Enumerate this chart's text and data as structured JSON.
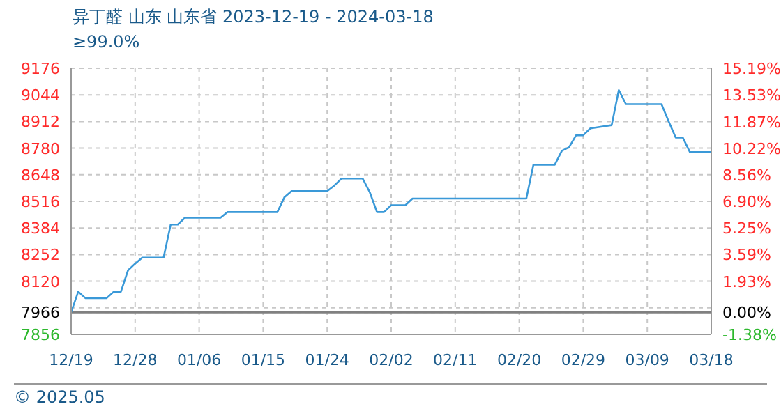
{
  "chart_data": {
    "type": "line",
    "title": "异丁醛 山东 山东省 2023-12-19 - 2024-03-18",
    "subtitle": "≥99.0%",
    "annotations": [
      "© 2025.05"
    ],
    "x": [
      "2023-12-19",
      "2023-12-20",
      "2023-12-21",
      "2023-12-24",
      "2023-12-25",
      "2023-12-26",
      "2023-12-27",
      "2023-12-28",
      "2023-12-29",
      "2024-01-01",
      "2024-01-02",
      "2024-01-03",
      "2024-01-04",
      "2024-01-09",
      "2024-01-10",
      "2024-01-17",
      "2024-01-18",
      "2024-01-19",
      "2024-01-24",
      "2024-01-25",
      "2024-01-26",
      "2024-01-29",
      "2024-01-30",
      "2024-01-31",
      "2024-02-01",
      "2024-02-02",
      "2024-02-04",
      "2024-02-05",
      "2024-02-21",
      "2024-02-22",
      "2024-02-25",
      "2024-02-26",
      "2024-02-27",
      "2024-02-28",
      "2024-02-29",
      "2024-03-01",
      "2024-03-04",
      "2024-03-05",
      "2024-03-06",
      "2024-03-11",
      "2024-03-12",
      "2024-03-13",
      "2024-03-14",
      "2024-03-15",
      "2024-03-18"
    ],
    "series": [
      {
        "color": "#3a99d8",
        "values": [
          7966,
          8068,
          8036,
          8036,
          8068,
          8068,
          8174,
          8207,
          8237,
          8237,
          8401,
          8401,
          8435,
          8435,
          8463,
          8463,
          8537,
          8567,
          8567,
          8594,
          8629,
          8629,
          8560,
          8463,
          8463,
          8497,
          8497,
          8530,
          8530,
          8698,
          8698,
          8767,
          8784,
          8844,
          8844,
          8878,
          8894,
          9068,
          8998,
          8998,
          8913,
          8832,
          8832,
          8760,
          8760
        ]
      }
    ],
    "xlim": [
      "2023-12-19",
      "2024-03-18"
    ],
    "xticks": [
      {
        "value": "2023-12-19",
        "label": "12/19"
      },
      {
        "value": "2023-12-28",
        "label": "12/28"
      },
      {
        "value": "2024-01-06",
        "label": "01/06"
      },
      {
        "value": "2024-01-15",
        "label": "01/15"
      },
      {
        "value": "2024-01-24",
        "label": "01/24"
      },
      {
        "value": "2024-02-02",
        "label": "02/02"
      },
      {
        "value": "2024-02-11",
        "label": "02/11"
      },
      {
        "value": "2024-02-20",
        "label": "02/20"
      },
      {
        "value": "2024-02-29",
        "label": "02/29"
      },
      {
        "value": "2024-03-09",
        "label": "03/09"
      },
      {
        "value": "2024-03-18",
        "label": "03/18"
      }
    ],
    "ylim": [
      7856,
      9176
    ],
    "yticks": [
      7856,
      7966,
      {
        "value": 7988,
        "label": null
      },
      8120,
      8252,
      8384,
      8516,
      8648,
      8780,
      8912,
      9044,
      9176
    ],
    "y2lim": [
      -1.38,
      15.19
    ],
    "y2ticks": [
      {
        "value": -1.38,
        "label": "-1.38%"
      },
      {
        "value": 0,
        "label": "0.00%"
      },
      {
        "value": 1.93,
        "label": "1.93%"
      },
      {
        "value": 3.59,
        "label": "3.59%"
      },
      {
        "value": 5.25,
        "label": "5.25%"
      },
      {
        "value": 6.9,
        "label": "6.90%"
      },
      {
        "value": 8.56,
        "label": "8.56%"
      },
      {
        "value": 10.22,
        "label": "10.22%"
      },
      {
        "value": 11.87,
        "label": "11.87%"
      },
      {
        "value": 13.53,
        "label": "13.53%"
      },
      {
        "value": 15.19,
        "label": "15.19%"
      }
    ],
    "ref_lines": [
      {
        "axis": "y",
        "value": 7966,
        "color": "#808080"
      }
    ],
    "grid": true,
    "marker": "none",
    "line_style": "solid"
  }
}
